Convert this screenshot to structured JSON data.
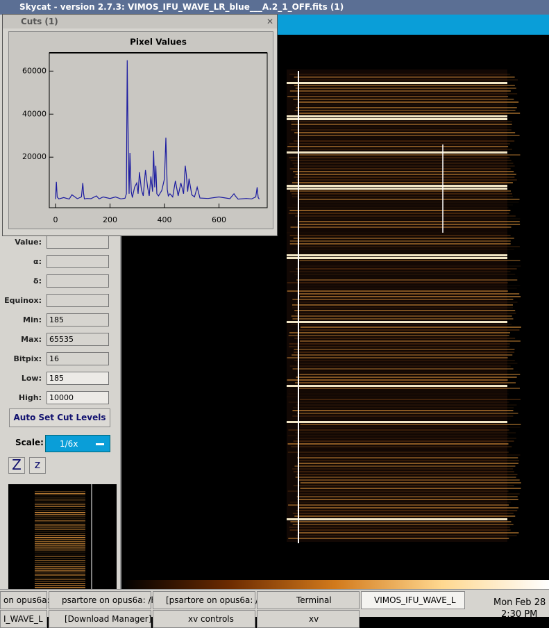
{
  "window_title": "Skycat - version 2.7.3: VIMOS_IFU_WAVE_LR_blue___A.2_1_OFF.fits (1)",
  "cuts_window": {
    "title": "Cuts (1)"
  },
  "chart_data": {
    "type": "line",
    "title": "Pixel Values",
    "x": [
      0,
      3,
      6,
      12,
      30,
      50,
      60,
      80,
      95,
      100,
      103,
      106,
      115,
      130,
      150,
      160,
      175,
      200,
      220,
      240,
      255,
      260,
      263,
      265,
      268,
      270,
      273,
      278,
      282,
      290,
      298,
      303,
      308,
      315,
      322,
      330,
      338,
      344,
      350,
      356,
      360,
      364,
      368,
      372,
      378,
      390,
      400,
      405,
      410,
      414,
      420,
      430,
      440,
      450,
      460,
      470,
      476,
      480,
      485,
      490,
      500,
      510,
      520,
      530,
      560,
      600,
      640,
      655,
      660,
      670,
      700,
      720,
      735,
      740,
      744,
      748
    ],
    "series": [
      {
        "name": "Pixel Values",
        "color": "#1a1aa0",
        "values": [
          500,
          8500,
          1500,
          600,
          1200,
          500,
          2500,
          700,
          1500,
          8000,
          3000,
          600,
          800,
          700,
          2000,
          600,
          1500,
          800,
          1500,
          600,
          900,
          3000,
          65000,
          44000,
          18000,
          3000,
          22000,
          4000,
          1200,
          6000,
          8000,
          3000,
          13000,
          5000,
          2000,
          14000,
          6000,
          2000,
          11000,
          4000,
          23000,
          6000,
          16000,
          3000,
          2000,
          4500,
          10000,
          29000,
          5000,
          2000,
          3000,
          1500,
          9000,
          2000,
          8000,
          3000,
          16000,
          12000,
          4000,
          10000,
          2500,
          1500,
          6000,
          1000,
          800,
          1500,
          700,
          3000,
          2000,
          500,
          800,
          600,
          1500,
          6000,
          1200,
          500
        ]
      }
    ],
    "xlim": [
      -23,
      777
    ],
    "ylim": [
      -3500,
      68500
    ],
    "xticks": [
      0,
      200,
      400,
      600
    ],
    "yticks": [
      20000,
      40000,
      60000
    ]
  },
  "panel": {
    "fields": [
      {
        "label": "Value:"
      },
      {
        "label": "α:"
      },
      {
        "label": "δ:"
      },
      {
        "label": "Equinox:"
      },
      {
        "label": "Min:",
        "value": "185"
      },
      {
        "label": "Max:",
        "value": "65535"
      },
      {
        "label": "Bitpix:",
        "value": "16"
      },
      {
        "label": "Low:",
        "value": "185"
      },
      {
        "label": "High:",
        "value": "10000"
      }
    ],
    "button": "Auto Set Cut Levels",
    "scale_label": "Scale:",
    "scale_value": "1/6x",
    "zoom_buttons": [
      "Z",
      "z"
    ]
  },
  "taskbar": {
    "tasks": [
      "on opus6a: /",
      "psartore on opus6a: /h",
      "[psartore on opus6a: /",
      "Terminal",
      "VIMOS_IFU_WAVE_L"
    ],
    "tasks_row2": [
      "I_WAVE_L",
      "[Download Manager]",
      "xv controls",
      "xv"
    ],
    "clock": [
      "Mon Feb 28",
      "2:30 PM"
    ]
  }
}
